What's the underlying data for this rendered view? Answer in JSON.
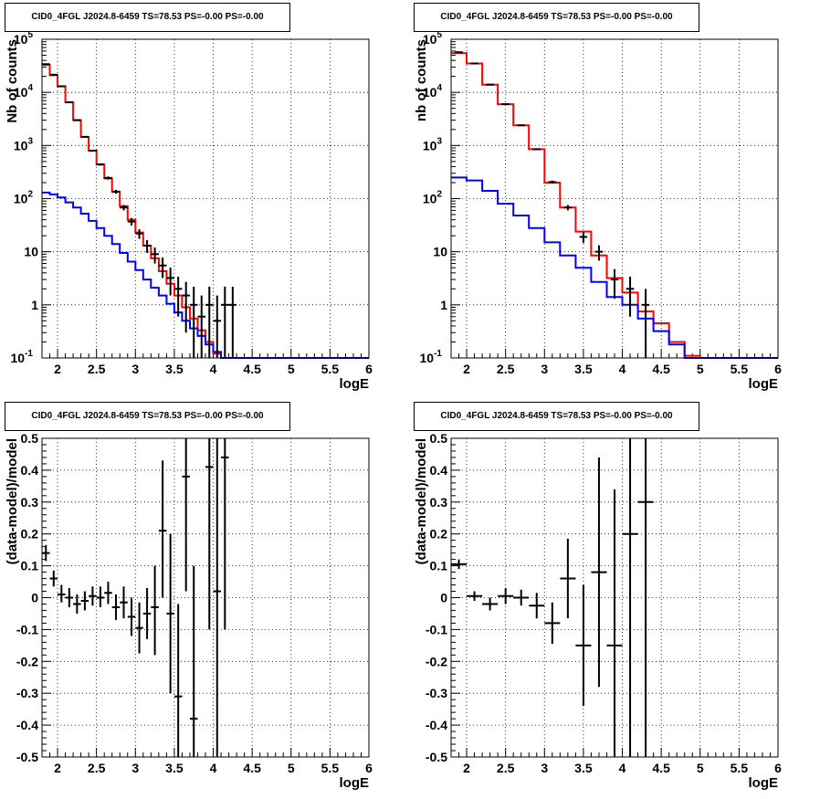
{
  "chart_data": [
    {
      "type": "line",
      "title": "CID0_4FGL J2024.8-6459 TS=78.53 PS=-0.00 PS=-0.00",
      "xlabel": "logE",
      "ylabel": "Nb of counts",
      "xlim": [
        1.8,
        6
      ],
      "ylim": [
        0.1,
        100000
      ],
      "yscale": "log",
      "grid": true,
      "xticks": [
        "2",
        "2.5",
        "3",
        "3.5",
        "4",
        "4.5",
        "5",
        "5.5",
        "6"
      ],
      "yticks": [
        "10^-1",
        "1",
        "10",
        "10^2",
        "10^3",
        "10^4",
        "10^5"
      ],
      "bin_edges": [
        1.8,
        1.9,
        2.0,
        2.1,
        2.2,
        2.3,
        2.4,
        2.5,
        2.6,
        2.7,
        2.8,
        2.9,
        3.0,
        3.1,
        3.2,
        3.3,
        3.4,
        3.5,
        3.6,
        3.7,
        3.8,
        3.9,
        4.0,
        4.1,
        4.2,
        4.3,
        4.4,
        4.5,
        4.6,
        4.7,
        4.8,
        4.9,
        5.0,
        5.1,
        5.2,
        5.3,
        5.4,
        5.5,
        5.6,
        5.7,
        5.8,
        5.9,
        6.0
      ],
      "series": [
        {
          "color": "#ff0000",
          "style": "histogram",
          "values": [
            33000,
            21000,
            13000,
            6500,
            3000,
            1450,
            800,
            440,
            240,
            135,
            72,
            40,
            23,
            13,
            7.5,
            4.3,
            2.5,
            1.5,
            0.9,
            0.55,
            0.33,
            0.2,
            0.12,
            0.1,
            0.1,
            0.1,
            0.1,
            0.1,
            0.1,
            0.1,
            0.1,
            0.1,
            0.1,
            0.1,
            0.1,
            0.1,
            0.1,
            0.1,
            0.1,
            0.1,
            0.1,
            0.1
          ]
        },
        {
          "color": "#0000ff",
          "style": "histogram",
          "values": [
            130,
            120,
            105,
            85,
            68,
            52,
            38,
            28,
            20,
            14,
            9.5,
            6.5,
            4.5,
            3.0,
            2.1,
            1.5,
            1.05,
            0.72,
            0.5,
            0.36,
            0.26,
            0.18,
            0.13,
            0.1,
            0.1,
            0.1,
            0.1,
            0.1,
            0.1,
            0.1,
            0.1,
            0.1,
            0.1,
            0.1,
            0.1,
            0.1,
            0.1,
            0.1,
            0.1,
            0.1,
            0.1,
            0.1
          ]
        },
        {
          "color": "#000000",
          "style": "errorbar",
          "points": [
            {
              "x": 1.85,
              "y": 34000,
              "lo": 33800,
              "hi": 34200
            },
            {
              "x": 1.95,
              "y": 21500,
              "lo": 21350,
              "hi": 21650
            },
            {
              "x": 2.05,
              "y": 13000,
              "lo": 12880,
              "hi": 13120
            },
            {
              "x": 2.15,
              "y": 6500,
              "lo": 6420,
              "hi": 6580
            },
            {
              "x": 2.25,
              "y": 3000,
              "lo": 2945,
              "hi": 3055
            },
            {
              "x": 2.35,
              "y": 1450,
              "lo": 1412,
              "hi": 1488
            },
            {
              "x": 2.45,
              "y": 800,
              "lo": 772,
              "hi": 828
            },
            {
              "x": 2.55,
              "y": 440,
              "lo": 419,
              "hi": 461
            },
            {
              "x": 2.65,
              "y": 245,
              "lo": 229,
              "hi": 261
            },
            {
              "x": 2.75,
              "y": 135,
              "lo": 124,
              "hi": 146
            },
            {
              "x": 2.85,
              "y": 68,
              "lo": 60,
              "hi": 76
            },
            {
              "x": 2.95,
              "y": 37,
              "lo": 31,
              "hi": 43
            },
            {
              "x": 3.05,
              "y": 22,
              "lo": 17.5,
              "hi": 26.5
            },
            {
              "x": 3.15,
              "y": 13,
              "lo": 9.5,
              "hi": 16.5
            },
            {
              "x": 3.25,
              "y": 9,
              "lo": 6,
              "hi": 12
            },
            {
              "x": 3.35,
              "y": 5.5,
              "lo": 3.2,
              "hi": 7.8
            },
            {
              "x": 3.45,
              "y": 3.2,
              "lo": 1.5,
              "hi": 5
            },
            {
              "x": 3.55,
              "y": 2,
              "lo": 0.6,
              "hi": 3.4
            },
            {
              "x": 3.65,
              "y": 1.5,
              "lo": 0.3,
              "hi": 2.7
            },
            {
              "x": 3.75,
              "y": 1,
              "lo": 0.1,
              "hi": 2.2
            },
            {
              "x": 3.85,
              "y": 0.6,
              "lo": 0.1,
              "hi": 1.5
            },
            {
              "x": 3.95,
              "y": 1,
              "lo": 0.1,
              "hi": 2.2
            },
            {
              "x": 4.05,
              "y": 0.5,
              "lo": 0.1,
              "hi": 1.5
            },
            {
              "x": 4.15,
              "y": 1,
              "lo": 0.1,
              "hi": 2.2
            },
            {
              "x": 4.25,
              "y": 1,
              "lo": 0.1,
              "hi": 2.2
            }
          ]
        }
      ]
    },
    {
      "type": "line",
      "title": "CID0_4FGL J2024.8-6459 TS=78.53 PS=-0.00 PS=-0.00",
      "xlabel": "logE",
      "ylabel": "nb of counts",
      "xlim": [
        1.8,
        6
      ],
      "ylim": [
        0.1,
        100000
      ],
      "yscale": "log",
      "grid": true,
      "xticks": [
        "2",
        "2.5",
        "3",
        "3.5",
        "4",
        "4.5",
        "5",
        "5.5",
        "6"
      ],
      "yticks": [
        "10^-1",
        "1",
        "10",
        "10^2",
        "10^3",
        "10^4",
        "10^5"
      ],
      "bin_edges": [
        1.8,
        2.0,
        2.2,
        2.4,
        2.6,
        2.8,
        3.0,
        3.2,
        3.4,
        3.6,
        3.8,
        4.0,
        4.2,
        4.4,
        4.6,
        4.8,
        5.0,
        5.2,
        5.4,
        5.6,
        5.8,
        6.0
      ],
      "series": [
        {
          "color": "#ff0000",
          "style": "histogram",
          "values": [
            55000,
            35000,
            14000,
            6000,
            2400,
            850,
            200,
            68,
            24,
            8.5,
            3.2,
            1.7,
            0.75,
            0.45,
            0.2,
            0.11,
            0.1,
            0.1,
            0.1,
            0.1,
            0.1
          ]
        },
        {
          "color": "#0000ff",
          "style": "histogram",
          "values": [
            250,
            220,
            140,
            80,
            48,
            28,
            15,
            8.5,
            5.0,
            2.7,
            1.4,
            1.0,
            0.55,
            0.32,
            0.18,
            0.1,
            0.1,
            0.1,
            0.1,
            0.1,
            0.1
          ]
        },
        {
          "color": "#000000",
          "style": "errorbar",
          "points": [
            {
              "x": 1.9,
              "y": 57000,
              "lo": 56800,
              "hi": 57200
            },
            {
              "x": 2.1,
              "y": 35000,
              "lo": 34810,
              "hi": 35190
            },
            {
              "x": 2.3,
              "y": 14000,
              "lo": 13880,
              "hi": 14120
            },
            {
              "x": 2.5,
              "y": 6000,
              "lo": 5920,
              "hi": 6080
            },
            {
              "x": 2.7,
              "y": 2400,
              "lo": 2350,
              "hi": 2450
            },
            {
              "x": 2.9,
              "y": 850,
              "lo": 820,
              "hi": 880
            },
            {
              "x": 3.1,
              "y": 205,
              "lo": 191,
              "hi": 219
            },
            {
              "x": 3.3,
              "y": 68,
              "lo": 60,
              "hi": 76
            },
            {
              "x": 3.5,
              "y": 19,
              "lo": 14.6,
              "hi": 23.4
            },
            {
              "x": 3.7,
              "y": 10,
              "lo": 6.8,
              "hi": 13.2
            },
            {
              "x": 3.9,
              "y": 3,
              "lo": 1.3,
              "hi": 4.7
            },
            {
              "x": 4.1,
              "y": 2,
              "lo": 0.6,
              "hi": 3.4
            },
            {
              "x": 4.3,
              "y": 1,
              "lo": 0.1,
              "hi": 2
            }
          ]
        }
      ]
    },
    {
      "type": "scatter",
      "title": "CID0_4FGL J2024.8-6459 TS=78.53 PS=-0.00 PS=-0.00",
      "xlabel": "logE",
      "ylabel": "(data-model)/model",
      "xlim": [
        1.8,
        6
      ],
      "ylim": [
        -0.5,
        0.5
      ],
      "grid": true,
      "xticks": [
        "2",
        "2.5",
        "3",
        "3.5",
        "4",
        "4.5",
        "5",
        "5.5",
        "6"
      ],
      "yticks": [
        "-0.5",
        "-0.4",
        "-0.3",
        "-0.2",
        "-0.1",
        "0",
        "0.1",
        "0.2",
        "0.3",
        "0.4",
        "0.5"
      ],
      "series": [
        {
          "color": "#000000",
          "style": "errorbar",
          "xerr": 0.05,
          "points": [
            {
              "x": 1.85,
              "y": 0.14,
              "lo": 0.115,
              "hi": 0.165
            },
            {
              "x": 1.95,
              "y": 0.06,
              "lo": 0.035,
              "hi": 0.085
            },
            {
              "x": 2.05,
              "y": 0.01,
              "lo": -0.015,
              "hi": 0.04
            },
            {
              "x": 2.15,
              "y": 0.0,
              "lo": -0.03,
              "hi": 0.03
            },
            {
              "x": 2.25,
              "y": -0.02,
              "lo": -0.05,
              "hi": 0.01
            },
            {
              "x": 2.35,
              "y": -0.01,
              "lo": -0.04,
              "hi": 0.02
            },
            {
              "x": 2.45,
              "y": 0.005,
              "lo": -0.025,
              "hi": 0.035
            },
            {
              "x": 2.55,
              "y": 0.0,
              "lo": -0.03,
              "hi": 0.035
            },
            {
              "x": 2.65,
              "y": 0.015,
              "lo": -0.02,
              "hi": 0.05
            },
            {
              "x": 2.75,
              "y": -0.03,
              "lo": -0.07,
              "hi": 0.01
            },
            {
              "x": 2.85,
              "y": -0.015,
              "lo": -0.065,
              "hi": 0.035
            },
            {
              "x": 2.95,
              "y": -0.06,
              "lo": -0.12,
              "hi": 0.0
            },
            {
              "x": 3.05,
              "y": -0.095,
              "lo": -0.175,
              "hi": -0.015
            },
            {
              "x": 3.15,
              "y": -0.05,
              "lo": -0.13,
              "hi": 0.03
            },
            {
              "x": 3.25,
              "y": -0.03,
              "lo": -0.18,
              "hi": 0.1
            },
            {
              "x": 3.35,
              "y": 0.21,
              "lo": 0.0,
              "hi": 0.43
            },
            {
              "x": 3.45,
              "y": -0.05,
              "lo": -0.3,
              "hi": 0.2
            },
            {
              "x": 3.55,
              "y": -0.31,
              "lo": -0.5,
              "hi": -0.02
            },
            {
              "x": 3.65,
              "y": 0.38,
              "lo": 0.02,
              "hi": 0.5
            },
            {
              "x": 3.75,
              "y": -0.38,
              "lo": -0.5,
              "hi": 0.1
            },
            {
              "x": 3.95,
              "y": 0.41,
              "lo": -0.1,
              "hi": 0.5
            },
            {
              "x": 4.05,
              "y": 0.02,
              "lo": -0.5,
              "hi": 0.5
            },
            {
              "x": 4.15,
              "y": 0.44,
              "lo": -0.1,
              "hi": 0.5
            }
          ]
        }
      ]
    },
    {
      "type": "scatter",
      "title": "CID0_4FGL J2024.8-6459 TS=78.53 PS=-0.00 PS=-0.00",
      "xlabel": "logE",
      "ylabel": "(data-model)/model",
      "xlim": [
        1.8,
        6
      ],
      "ylim": [
        -0.5,
        0.5
      ],
      "grid": true,
      "xticks": [
        "2",
        "2.5",
        "3",
        "3.5",
        "4",
        "4.5",
        "5",
        "5.5",
        "6"
      ],
      "yticks": [
        "-0.5",
        "-0.4",
        "-0.3",
        "-0.2",
        "-0.1",
        "0",
        "0.1",
        "0.2",
        "0.3",
        "0.4",
        "0.5"
      ],
      "series": [
        {
          "color": "#000000",
          "style": "errorbar",
          "xerr": 0.1,
          "points": [
            {
              "x": 1.9,
              "y": 0.105,
              "lo": 0.09,
              "hi": 0.12
            },
            {
              "x": 2.1,
              "y": 0.005,
              "lo": -0.01,
              "hi": 0.02
            },
            {
              "x": 2.3,
              "y": -0.02,
              "lo": -0.04,
              "hi": 0.0
            },
            {
              "x": 2.5,
              "y": 0.005,
              "lo": -0.02,
              "hi": 0.03
            },
            {
              "x": 2.7,
              "y": 0.0,
              "lo": -0.025,
              "hi": 0.025
            },
            {
              "x": 2.9,
              "y": -0.025,
              "lo": -0.065,
              "hi": 0.015
            },
            {
              "x": 3.1,
              "y": -0.08,
              "lo": -0.145,
              "hi": -0.015
            },
            {
              "x": 3.3,
              "y": 0.06,
              "lo": -0.065,
              "hi": 0.185
            },
            {
              "x": 3.5,
              "y": -0.15,
              "lo": -0.34,
              "hi": 0.04
            },
            {
              "x": 3.7,
              "y": 0.08,
              "lo": -0.28,
              "hi": 0.44
            },
            {
              "x": 3.9,
              "y": -0.15,
              "lo": -0.5,
              "hi": 0.34
            },
            {
              "x": 4.1,
              "y": 0.2,
              "lo": -0.5,
              "hi": 0.5
            },
            {
              "x": 4.3,
              "y": 0.3,
              "lo": -0.5,
              "hi": 0.5
            }
          ]
        }
      ]
    }
  ]
}
